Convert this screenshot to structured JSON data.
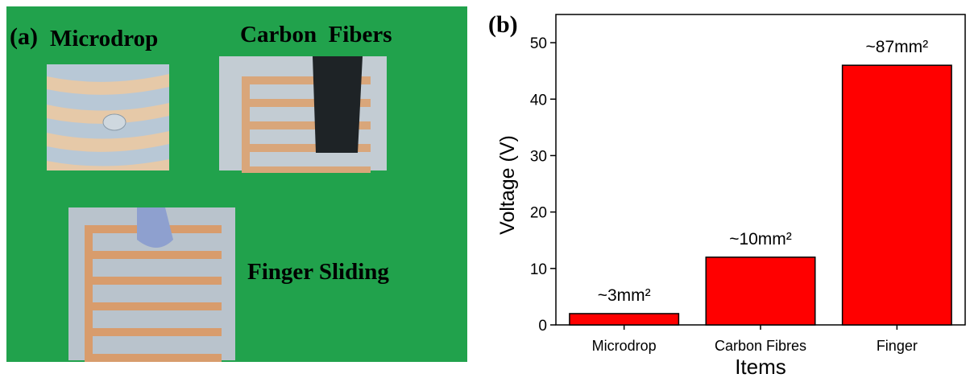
{
  "panel_a": {
    "label": "(a)",
    "captions": [
      "Microdrop",
      "Carbon  Fibers",
      "Finger Sliding"
    ]
  },
  "chart_data": {
    "type": "bar",
    "panel_label": "(b)",
    "x_label": "Items",
    "y_label": "Voltage (V)",
    "categories": [
      "Microdrop",
      "Carbon Fibres",
      "Finger"
    ],
    "values": [
      2,
      12,
      46
    ],
    "annotations": [
      "~3mm²",
      "~10mm²",
      "~87mm²"
    ],
    "color": "#ff0000",
    "ylim": [
      0,
      55
    ],
    "yticks": [
      0,
      10,
      20,
      30,
      40,
      50
    ],
    "grid": false
  }
}
